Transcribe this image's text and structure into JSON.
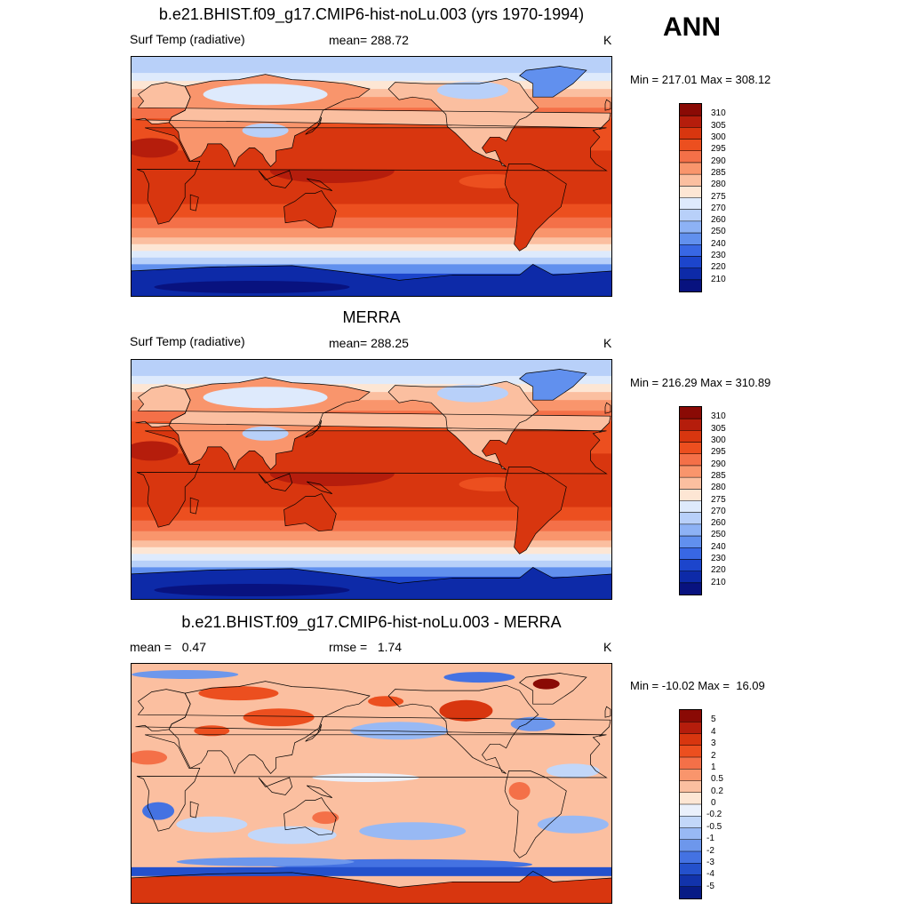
{
  "season": "ANN",
  "panels": [
    {
      "title": "b.e21.BHIST.f09_g17.CMIP6-hist-noLu.003 (yrs 1970-1994)",
      "left_label": "Surf Temp (radiative)",
      "center_label": "mean= 288.72",
      "units": "K",
      "minmax": "Min = 217.01 Max = 308.12",
      "kind": "abs"
    },
    {
      "title": "MERRA",
      "left_label": "Surf Temp (radiative)",
      "center_label": "mean= 288.25",
      "units": "K",
      "minmax": "Min = 216.29 Max = 310.89",
      "kind": "abs"
    },
    {
      "title": "b.e21.BHIST.f09_g17.CMIP6-hist-noLu.003 - MERRA",
      "left_label": "mean =   0.47",
      "center_label": "rmse =   1.74",
      "units": "K",
      "minmax": "Min = -10.02 Max =  16.09",
      "kind": "diff"
    }
  ],
  "abs_legend": {
    "labels": [
      "310",
      "305",
      "300",
      "295",
      "290",
      "285",
      "280",
      "275",
      "270",
      "260",
      "250",
      "240",
      "230",
      "220",
      "210"
    ],
    "colors": [
      "#8a0a05",
      "#b51d0c",
      "#d8360f",
      "#ec4f1f",
      "#f47048",
      "#f9956c",
      "#fbbfa0",
      "#fde6d4",
      "#deeafc",
      "#b8d0f9",
      "#8db2f5",
      "#6190ee",
      "#3867e4",
      "#1c45cc",
      "#0d2aa8",
      "#08127f"
    ]
  },
  "diff_legend": {
    "labels": [
      "5",
      "4",
      "3",
      "2",
      "1",
      "0.5",
      "0.2",
      "0",
      "-0.2",
      "-0.5",
      "-1",
      "-2",
      "-3",
      "-4",
      "-5"
    ],
    "colors": [
      "#8a0a05",
      "#b51d0c",
      "#d8360f",
      "#ec4f1f",
      "#f47048",
      "#f9956c",
      "#fbbfa0",
      "#fde6d4",
      "#eaf0fb",
      "#c2d7f9",
      "#98b9f4",
      "#6d97ec",
      "#4472e2",
      "#2451cc",
      "#1233ab",
      "#081b85"
    ]
  }
}
